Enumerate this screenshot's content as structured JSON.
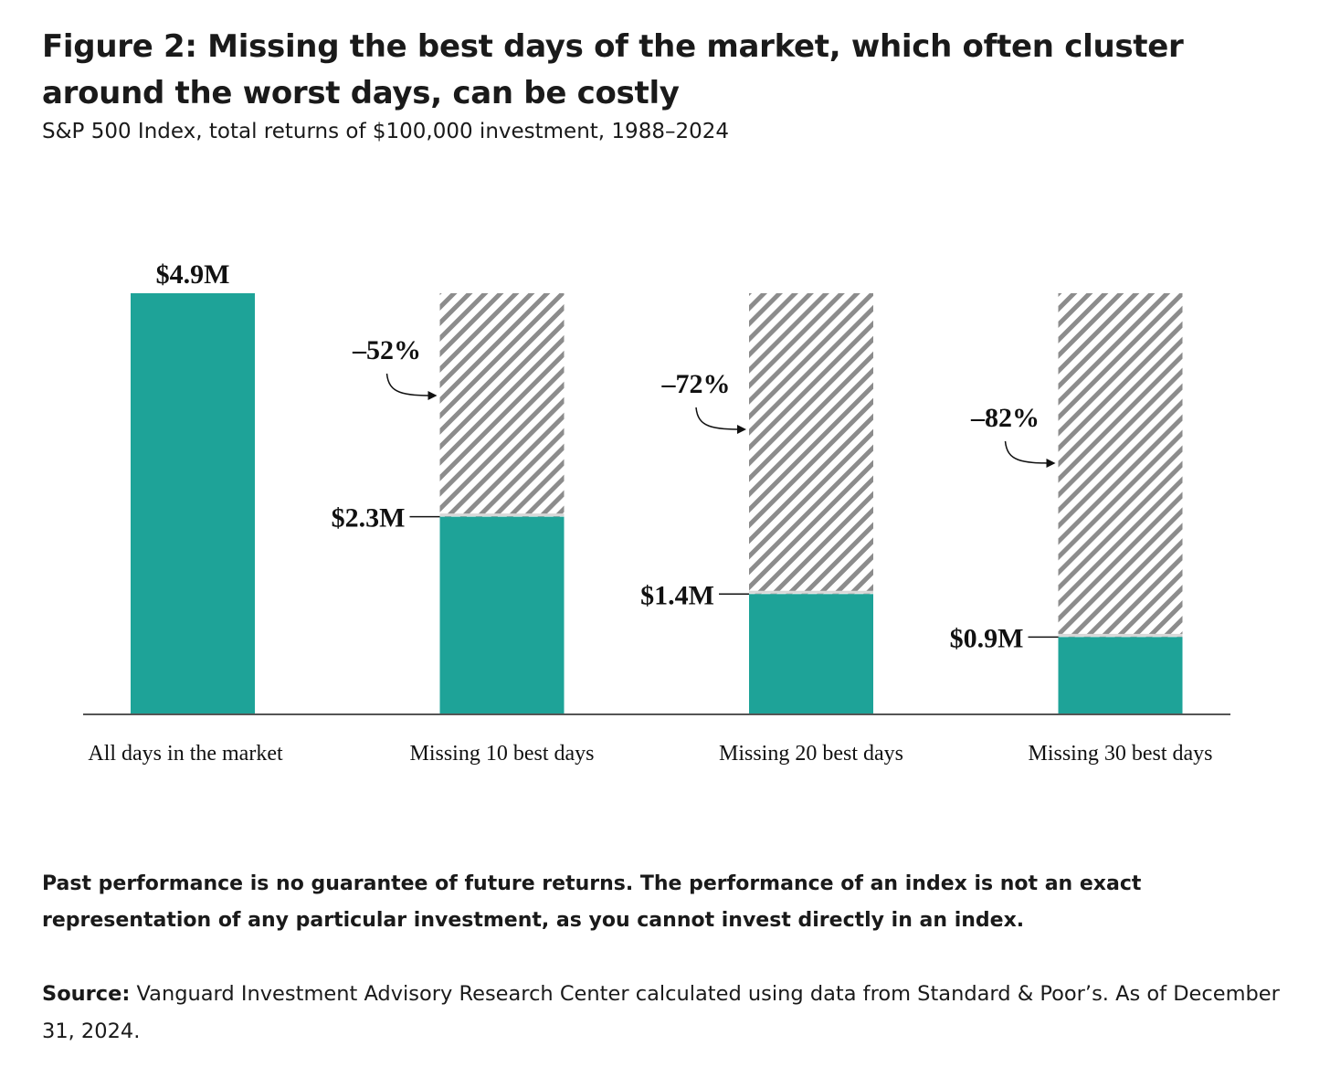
{
  "figure": {
    "title": "Figure 2: Missing the best days of the market, which often cluster around the worst days, can be costly",
    "subtitle": "S&P 500 Index, total returns of $100,000 investment, 1988–2024"
  },
  "colors": {
    "bar": "#1ea398",
    "hatch": "#8c8c8c",
    "axis": "#555555"
  },
  "chart_data": {
    "type": "bar",
    "categories": [
      "All days in the market",
      "Missing 10 best days",
      "Missing 20 best days",
      "Missing 30 best days"
    ],
    "values": [
      4.9,
      2.3,
      1.4,
      0.9
    ],
    "unit": "$M",
    "value_labels": [
      "$4.9M",
      "$2.3M",
      "$1.4M",
      "$0.9M"
    ],
    "reference_value": 4.9,
    "change_labels": [
      "",
      "–52%",
      "–72%",
      "–82%"
    ],
    "ylim": [
      0,
      4.9
    ],
    "title": "Figure 2: Missing the best days of the market, which often cluster around the worst days, can be costly",
    "xlabel": "",
    "ylabel": ""
  },
  "footer": {
    "disclaimer": "Past performance is no guarantee of future returns. The performance of an index is not an exact representation of any particular investment, as you cannot invest directly in an index.",
    "source_label": "Source:",
    "source_text": "Vanguard Investment Advisory Research Center calculated using data from Standard & Poor’s. As of December 31, 2024."
  }
}
